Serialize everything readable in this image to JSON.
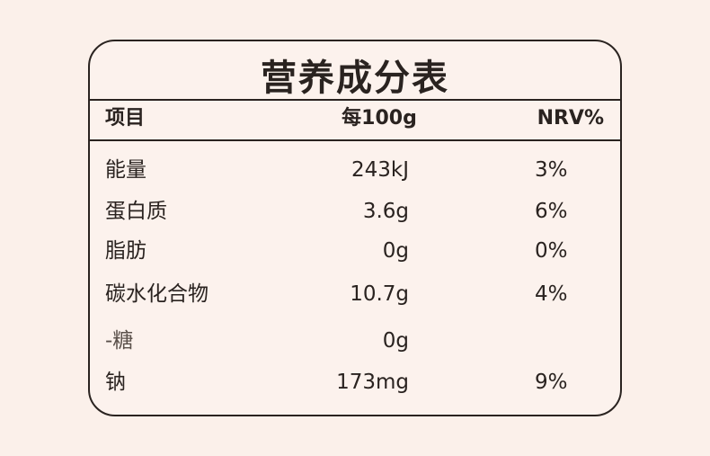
{
  "header": {
    "title": "营养成分表"
  },
  "table": {
    "columns": [
      "项目",
      "每100g",
      "NRV%"
    ],
    "rows": [
      [
        "能量",
        "243kJ",
        "3%"
      ],
      [
        "蛋白质",
        "3.6g",
        "6%"
      ],
      [
        "脂肪",
        "0g",
        "0%"
      ],
      [
        "碳水化合物",
        "10.7g",
        "4%"
      ],
      [
        "-糖",
        "0g"
      ],
      [
        "钠",
        "173mg",
        "9%"
      ]
    ]
  }
}
